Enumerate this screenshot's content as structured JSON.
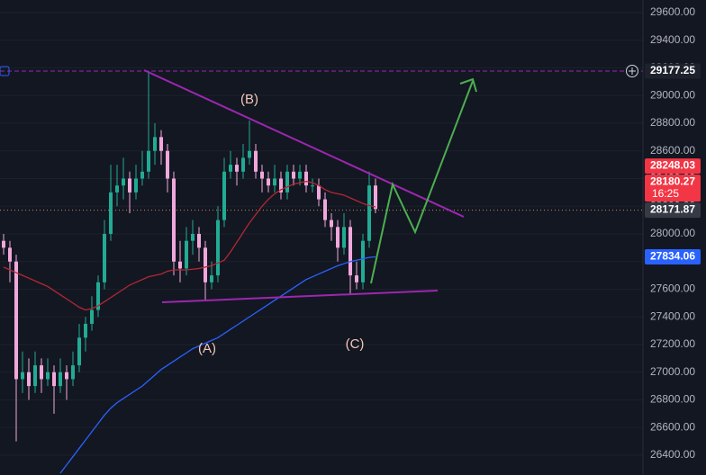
{
  "chart_data": {
    "type": "candlestick",
    "up_color": "#22ab94",
    "down_color": "#f0a8dc",
    "ylim": [
      26257,
      29691
    ],
    "yticks": [
      {
        "value": 26400,
        "label": "26400.00"
      },
      {
        "value": 26600,
        "label": "26600.00"
      },
      {
        "value": 26800,
        "label": "26800.00"
      },
      {
        "value": 27000,
        "label": "27000.00"
      },
      {
        "value": 27200,
        "label": "27200.00"
      },
      {
        "value": 27400,
        "label": "27400.00"
      },
      {
        "value": 27600,
        "label": "27600.00"
      },
      {
        "value": 27800,
        "label": "27800.00"
      },
      {
        "value": 28000,
        "label": "28000.00"
      },
      {
        "value": 28200,
        "label": "28200.00"
      },
      {
        "value": 28400,
        "label": "28400.00"
      },
      {
        "value": 28600,
        "label": "28600.00"
      },
      {
        "value": 28800,
        "label": "28800.00"
      },
      {
        "value": 29000,
        "label": "29000.00"
      },
      {
        "value": 29200,
        "label": "29200.00"
      },
      {
        "value": 29400,
        "label": "29400.00"
      },
      {
        "value": 29600,
        "label": "29600.00"
      }
    ],
    "grid": true,
    "open": [
      27950,
      27900,
      27800,
      26950,
      27000,
      26900,
      27050,
      26950,
      27000,
      26900,
      27000,
      26950,
      27050,
      27250,
      27350,
      27450,
      27650,
      28000,
      28300,
      28350,
      28400,
      28300,
      28400,
      28450,
      28600,
      28700,
      28600,
      28400,
      27800,
      27750,
      27950,
      28000,
      27900,
      27650,
      27700,
      28100,
      28450,
      28500,
      28450,
      28550,
      28600,
      28450,
      28400,
      28350,
      28400,
      28300,
      28450,
      28400,
      28450,
      28350,
      28350,
      28250,
      28100,
      28050,
      27900,
      28050,
      27700,
      27650,
      27950,
      28350
    ],
    "high": [
      28000,
      27950,
      27850,
      27150,
      27100,
      27150,
      27100,
      27100,
      27050,
      27100,
      27050,
      27150,
      27350,
      27400,
      27550,
      27700,
      28100,
      28500,
      28500,
      28550,
      28450,
      28500,
      28600,
      29177,
      28800,
      28750,
      28650,
      28450,
      27950,
      28050,
      28100,
      28050,
      27950,
      27800,
      28200,
      28550,
      28600,
      28550,
      28650,
      28820,
      28650,
      28500,
      28450,
      28500,
      28450,
      28500,
      28500,
      28500,
      28500,
      28400,
      28400,
      28300,
      28150,
      28100,
      28150,
      28100,
      27800,
      28000,
      28450,
      28400
    ],
    "low": [
      27850,
      27650,
      26500,
      26850,
      26800,
      26850,
      26850,
      26900,
      26700,
      26850,
      26800,
      26900,
      27000,
      27150,
      27300,
      27400,
      27600,
      27950,
      28200,
      28250,
      28150,
      28250,
      28350,
      28400,
      28500,
      28500,
      28300,
      27700,
      27650,
      27700,
      27850,
      27800,
      27520,
      27600,
      27650,
      28050,
      28400,
      28350,
      28400,
      28500,
      28400,
      28300,
      28300,
      28300,
      28250,
      28250,
      28350,
      28350,
      28300,
      28300,
      28200,
      28050,
      27950,
      27800,
      27850,
      27560,
      27600,
      27600,
      27900,
      28150
    ],
    "close": [
      27900,
      27800,
      26950,
      27000,
      26900,
      27050,
      26950,
      27000,
      26900,
      27000,
      26950,
      27050,
      27250,
      27350,
      27450,
      27650,
      28000,
      28300,
      28350,
      28400,
      28300,
      28400,
      28450,
      28600,
      28700,
      28600,
      28400,
      27800,
      27750,
      27950,
      28000,
      27900,
      27650,
      27700,
      28100,
      28450,
      28500,
      28450,
      28550,
      28600,
      28450,
      28400,
      28350,
      28400,
      28300,
      28450,
      28400,
      28450,
      28350,
      28350,
      28250,
      28100,
      28050,
      27900,
      28050,
      27700,
      27650,
      27950,
      28350,
      28180
    ],
    "series": [
      {
        "color": "#b22833",
        "values": [
          27760,
          27740,
          27720,
          27700,
          27680,
          27660,
          27640,
          27620,
          27590,
          27560,
          27530,
          27500,
          27470,
          27450,
          27460,
          27480,
          27510,
          27540,
          27570,
          27600,
          27630,
          27650,
          27670,
          27690,
          27700,
          27710,
          27730,
          27740,
          27740,
          27740,
          27745,
          27750,
          27760,
          27770,
          27790,
          27810,
          27870,
          27940,
          28010,
          28080,
          28140,
          28200,
          28250,
          28290,
          28320,
          28340,
          28360,
          28370,
          28380,
          28370,
          28350,
          28320,
          28300,
          28290,
          28280,
          28260,
          28240,
          28220,
          28205,
          28195
        ]
      },
      {
        "color": "#2962ff",
        "values": [
          null,
          null,
          null,
          null,
          null,
          null,
          null,
          null,
          null,
          26270,
          26330,
          26390,
          26450,
          26510,
          26570,
          26630,
          26690,
          26740,
          26780,
          26810,
          26840,
          26870,
          26900,
          26940,
          26980,
          27020,
          27050,
          27080,
          27110,
          27140,
          27170,
          27190,
          27210,
          27230,
          27250,
          27280,
          27310,
          27340,
          27370,
          27400,
          27430,
          27460,
          27490,
          27520,
          27550,
          27580,
          27610,
          27640,
          27670,
          27690,
          27710,
          27730,
          27750,
          27770,
          27785,
          27800,
          27810,
          27820,
          27830,
          27834
        ]
      }
    ],
    "hline": 29177.25,
    "last_price": 28171.87,
    "price_tags": [
      {
        "value": 27834.06,
        "color": "#2962ff"
      },
      {
        "value": 28171.87,
        "color": "#363a45"
      },
      {
        "value": 28180.27,
        "color": "#f23645",
        "countdown": "16:25"
      },
      {
        "value": 28248.03,
        "color": "#f23645"
      },
      {
        "value": 29177.25,
        "color": "#1e222d"
      }
    ],
    "annotations": [
      "(A)",
      "(B)",
      "(C)"
    ]
  }
}
